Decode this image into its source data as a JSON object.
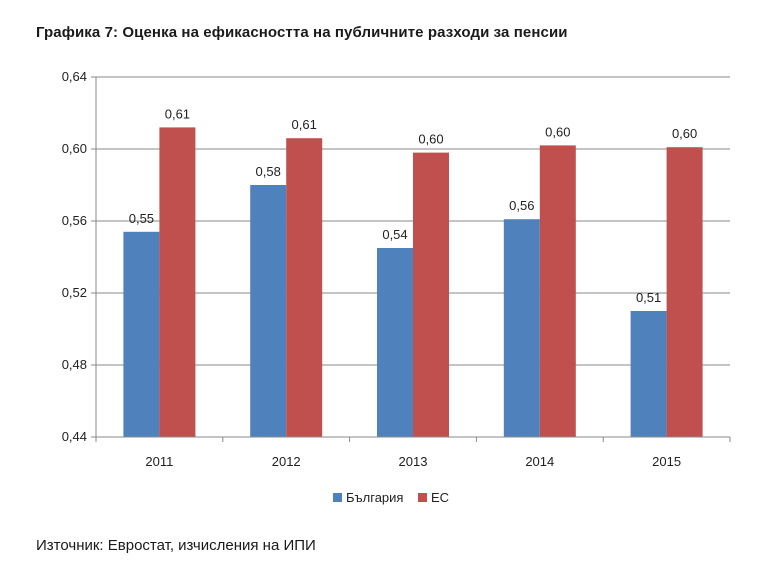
{
  "chart_data": {
    "type": "bar",
    "title": "Графика 7: Оценка на ефикасността на публичните разходи за пенсии",
    "categories": [
      "2011",
      "2012",
      "2013",
      "2014",
      "2015"
    ],
    "series": [
      {
        "name": "България",
        "color": "#4f81bd",
        "values": [
          0.554,
          0.58,
          0.545,
          0.561,
          0.51
        ],
        "labels": [
          "0,55",
          "0,58",
          "0,54",
          "0,56",
          "0,51"
        ]
      },
      {
        "name": "ЕС",
        "color": "#c0504d",
        "values": [
          0.612,
          0.606,
          0.598,
          0.602,
          0.601
        ],
        "labels": [
          "0,61",
          "0,61",
          "0,60",
          "0,60",
          "0,60"
        ]
      }
    ],
    "ylim": [
      0.44,
      0.64
    ],
    "yticks": [
      0.44,
      0.48,
      0.52,
      0.56,
      0.6,
      0.64
    ],
    "ytick_labels": [
      "0,44",
      "0,48",
      "0,52",
      "0,56",
      "0,60",
      "0,64"
    ],
    "grid": true,
    "legend_position": "bottom",
    "xlabel": "",
    "ylabel": ""
  },
  "source_text": "Източник: Евростат, изчисления на ИПИ"
}
